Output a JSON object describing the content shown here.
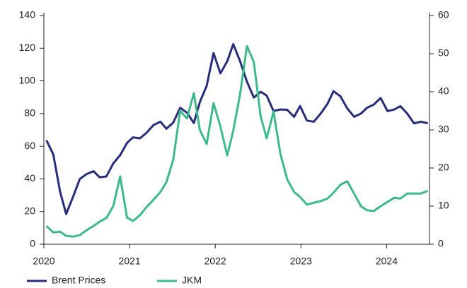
{
  "chart_data": {
    "type": "line",
    "x": [
      2020.03,
      2020.11,
      2020.19,
      2020.26,
      2020.34,
      2020.42,
      2020.5,
      2020.58,
      2020.65,
      2020.73,
      2020.81,
      2020.89,
      2020.97,
      2021.04,
      2021.12,
      2021.2,
      2021.28,
      2021.36,
      2021.43,
      2021.51,
      2021.59,
      2021.67,
      2021.75,
      2021.82,
      2021.9,
      2021.98,
      2022.06,
      2022.14,
      2022.21,
      2022.29,
      2022.37,
      2022.45,
      2022.53,
      2022.6,
      2022.68,
      2022.76,
      2022.84,
      2022.92,
      2022.99,
      2023.07,
      2023.15,
      2023.23,
      2023.31,
      2023.38,
      2023.46,
      2023.54,
      2023.62,
      2023.7,
      2023.77,
      2023.85,
      2023.93,
      2024.01,
      2024.09,
      2024.16,
      2024.24,
      2024.32,
      2024.4,
      2024.48
    ],
    "series": [
      {
        "name": "Brent Prices",
        "color": "#272c7c",
        "values": [
          63.6,
          55,
          32,
          18.5,
          29,
          40,
          43,
          44.7,
          41,
          41.5,
          49.5,
          54.5,
          62,
          65.4,
          64.8,
          68.3,
          73,
          75,
          70.7,
          74.5,
          83.5,
          80.5,
          74.2,
          87,
          97,
          117,
          104.6,
          112,
          122.5,
          112,
          99.5,
          89.8,
          93.3,
          91,
          81.5,
          82.5,
          82.3,
          78,
          84.6,
          75.7,
          75,
          80,
          86,
          93.7,
          90.6,
          83.2,
          78,
          80,
          83.5,
          85.5,
          89.5,
          81.5,
          82.5,
          84.5,
          80,
          74,
          75,
          74
        ]
      },
      {
        "name": "JKM",
        "color": "#3dba8a",
        "axis": "y2",
        "values": [
          4.8,
          3.1,
          3.3,
          2.2,
          2,
          2.4,
          3.7,
          4.8,
          5.9,
          6.9,
          10,
          17.8,
          7,
          6.1,
          7.6,
          9.8,
          11.7,
          13.7,
          16.3,
          22.2,
          35,
          33,
          39.6,
          30,
          26.3,
          37,
          30.9,
          23.3,
          29.8,
          39.4,
          52,
          47.8,
          33.5,
          27.8,
          34.8,
          23.7,
          17,
          13.7,
          12.4,
          10.4,
          10.9,
          11.3,
          12,
          13.5,
          15.6,
          16.5,
          13.3,
          10,
          8.9,
          8.7,
          10,
          11.1,
          12.2,
          12,
          13.3,
          13.3,
          13.3,
          14
        ]
      }
    ],
    "xlim": [
      2020,
      2024.5
    ],
    "xticks": [
      2020,
      2021,
      2022,
      2023,
      2024
    ],
    "ylim": [
      0,
      140
    ],
    "yticks": [
      0,
      20,
      40,
      60,
      80,
      100,
      120,
      140
    ],
    "y2lim": [
      0,
      60
    ],
    "y2ticks": [
      0,
      10,
      20,
      30,
      40,
      50,
      60
    ]
  }
}
